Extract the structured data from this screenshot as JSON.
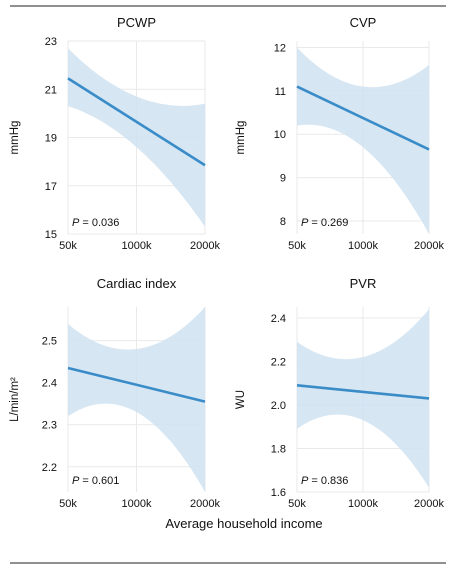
{
  "chart_data": {
    "xlabel": "Average household income",
    "panels": [
      {
        "title": "PCWP",
        "type": "line",
        "ylabel": "mmHg",
        "x": [
          "50k",
          "1000k",
          "2000k"
        ],
        "fit": [
          21.45,
          19.65,
          17.85
        ],
        "ci_upper": [
          22.7,
          20.7,
          20.4
        ],
        "ci_lower": [
          20.3,
          18.6,
          15.3
        ],
        "ylim": [
          15,
          23
        ],
        "yticks": [
          "23",
          "21",
          "19",
          "17",
          "15"
        ],
        "p_label": "P",
        "p_value": " = 0.036"
      },
      {
        "title": "CVP",
        "type": "line",
        "ylabel": "mmHg",
        "x": [
          "50k",
          "1000k",
          "2000k"
        ],
        "fit": [
          11.1,
          10.4,
          9.65
        ],
        "ci_upper": [
          12.0,
          11.1,
          11.6
        ],
        "ci_lower": [
          10.2,
          9.7,
          7.7
        ],
        "ylim": [
          7.7,
          12.15
        ],
        "yticks": [
          "12",
          "11",
          "10",
          "9",
          "8"
        ],
        "p_label": "P",
        "p_value": " = 0.269"
      },
      {
        "title": "Cardiac index",
        "type": "line",
        "ylabel": "L/min/m²",
        "x": [
          "50k",
          "1000k",
          "2000k"
        ],
        "fit": [
          2.435,
          2.395,
          2.355
        ],
        "ci_upper": [
          2.54,
          2.48,
          2.58
        ],
        "ci_lower": [
          2.32,
          2.33,
          2.14
        ],
        "ylim": [
          2.14,
          2.58
        ],
        "yticks": [
          "2.5",
          "2.4",
          "2.3",
          "2.2"
        ],
        "p_label": "P",
        "p_value": " = 0.601"
      },
      {
        "title": "PVR",
        "type": "line",
        "ylabel": "WU",
        "x": [
          "50k",
          "1000k",
          "2000k"
        ],
        "fit": [
          2.09,
          2.06,
          2.03
        ],
        "ci_upper": [
          2.29,
          2.22,
          2.44
        ],
        "ci_lower": [
          1.89,
          1.93,
          1.62
        ],
        "ylim": [
          1.6,
          2.45
        ],
        "yticks": [
          "2.4",
          "2.2",
          "2.0",
          "1.8",
          "1.6"
        ],
        "p_label": "P",
        "p_value": " = 0.836"
      }
    ]
  }
}
